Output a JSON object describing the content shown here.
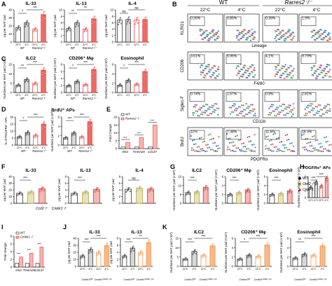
{
  "colors": {
    "wt": "#1a1a1a",
    "ko": "#e0332e",
    "ko_fill": "#f06a63",
    "ko_light": "#f7b7b3",
    "ccrl2": "#a89a3a",
    "cmklr1": "#c01818",
    "orange": "#ef8a3a",
    "orange_fill": "#f7b98a",
    "grey_fill": "#d9d9d9",
    "flow_blue": "#1f4fd6"
  },
  "panels": {
    "A": {
      "letter": "A",
      "charts": [
        {
          "key": "il33",
          "title": "IL-33",
          "ylabel": "pg per WAT pad",
          "ticks": [
            "0",
            "10",
            "20",
            "30",
            "40"
          ],
          "sig": [
            "*",
            "***"
          ],
          "groups": [
            "WT",
            "Rarres2⁻/⁻"
          ],
          "cats": [
            "22°C",
            "4°C",
            "22°C",
            "4°C"
          ],
          "values": [
            18,
            24,
            16,
            34
          ]
        },
        {
          "key": "il13",
          "title": "IL-13",
          "ylabel": "pg per WAT pad",
          "ticks": [
            "0",
            "2",
            "4",
            "6",
            "8",
            "10"
          ],
          "sig": [
            "**",
            "**"
          ],
          "groups": [
            "WT",
            "Rarres2⁻/⁻"
          ],
          "cats": [
            "22°C",
            "4°C",
            "22°C",
            "4°C"
          ],
          "values": [
            4.2,
            6.0,
            4.0,
            7.2
          ]
        },
        {
          "key": "il4",
          "title": "IL-4",
          "ylabel": "pg per WAT pad",
          "ticks": [
            "0",
            "2",
            "4",
            "6",
            "8",
            "10"
          ],
          "sig": [
            "ns",
            "ns"
          ],
          "groups": [
            "WT",
            "Rarres2⁻/⁻"
          ],
          "cats": [
            "22°C",
            "4°C",
            "22°C",
            "4°C"
          ],
          "values": [
            6.8,
            7.0,
            6.9,
            7.0
          ]
        }
      ]
    },
    "B": {
      "letter": "B",
      "header_wt": "WT",
      "header_ko": "Rarres2⁻/⁻",
      "temps": [
        "22°C",
        "4°C",
        "22°C",
        "4°C"
      ],
      "rows": [
        {
          "ylab": "KLRG1",
          "xlab": "Lineage",
          "pct": [
            "0.26%",
            "0.85%",
            "0.39%",
            "1.9%"
          ]
        },
        {
          "ylab": "CD206",
          "xlab": "F4/80",
          "pct": [
            "3.61%",
            "5.95%",
            "4.1%",
            "9.79%"
          ]
        },
        {
          "ylab": "Siglec-F",
          "xlab": "CD11b",
          "pct": [
            "0.74%",
            "1.57%",
            "0.9%",
            "2.81%"
          ]
        },
        {
          "ylab": "BrdU",
          "xlab": "PDGFRα",
          "pct": [
            "11%",
            "7.38%",
            "11.6%",
            "16.3%"
          ]
        }
      ]
    },
    "C": {
      "letter": "C",
      "charts": [
        {
          "key": "ilc2",
          "title": "ILC2",
          "ylabel": "Numbers per WAT pad (×10³)",
          "ticks": [
            "0",
            "5",
            "10",
            "15"
          ],
          "sig": [
            "**",
            "***"
          ],
          "values": [
            4,
            7,
            5,
            12
          ]
        },
        {
          "key": "cd206",
          "title": "CD206⁺ Mφ",
          "ylabel": "Numbers per WAT pad (×10⁴)",
          "ticks": [
            "0",
            "2",
            "4",
            "6",
            "8"
          ],
          "sig": [
            "*",
            "***"
          ],
          "values": [
            2,
            3.2,
            2.3,
            6.6
          ]
        },
        {
          "key": "eos",
          "title": "Eosinophil",
          "ylabel": "Numbers per WAT pad (×10³)",
          "ticks": [
            "0",
            "2",
            "4",
            "6"
          ],
          "sig": [
            "*",
            "***"
          ],
          "values": [
            1.6,
            2.6,
            1.8,
            4.5
          ]
        }
      ]
    },
    "D": {
      "letter": "D",
      "title": "BrdU⁺ APs",
      "charts": [
        {
          "key": "pct",
          "ylabel": "% of PDGFRα⁺ APs",
          "ticks": [
            "0",
            "5",
            "10",
            "15",
            "20"
          ],
          "sig": [
            "*",
            "***"
          ],
          "values": [
            6,
            9,
            7,
            15
          ]
        },
        {
          "key": "num",
          "ylabel": "Numbers per WAT pad (×10³)",
          "ticks": [
            "0",
            "2",
            "4",
            "6"
          ],
          "sig": [
            "***",
            "***"
          ],
          "values": [
            1.6,
            2.6,
            1.8,
            5.0
          ]
        }
      ]
    },
    "E": {
      "letter": "E",
      "ylabel": "Fold change",
      "legend": [
        "WT",
        "Rarres2⁻/⁻"
      ],
      "genes": [
        "Il4rα",
        "Tmem26",
        "Cd137"
      ],
      "ticks": [
        "0",
        "5",
        "10",
        "15",
        "20"
      ],
      "sig": [
        "***",
        "***",
        "***"
      ],
      "wt": [
        1,
        1,
        1
      ],
      "ko": [
        4,
        7,
        15
      ]
    },
    "F": {
      "letter": "F",
      "charts": [
        {
          "key": "f_il33",
          "title": "IL-33",
          "ylabel": "pg per WAT pad",
          "ticks": [
            "0",
            "10",
            "20",
            "30",
            "40"
          ],
          "sig": "***",
          "values": [
            15,
            17,
            22,
            30
          ]
        },
        {
          "key": "f_il13",
          "title": "IL-13",
          "ylabel": "pg per WAT pad",
          "ticks": [
            "0",
            "2",
            "4",
            "6",
            "8"
          ],
          "sig": "***",
          "values": [
            3.0,
            3.4,
            4.2,
            6.0
          ]
        },
        {
          "key": "f_il4",
          "title": "IL-4",
          "ylabel": "pg per WAT pad",
          "ticks": [
            "0",
            "2",
            "4",
            "6",
            "8"
          ],
          "sig": "ns",
          "values": [
            4.2,
            4.6,
            4.3,
            4.5
          ]
        }
      ],
      "xgroups": [
        "WT",
        "Ccrl2⁻/⁻",
        "Cmklr1⁻/⁻"
      ]
    },
    "G": {
      "letter": "G",
      "charts": [
        {
          "key": "g_ilc2",
          "title": "ILC2",
          "ylabel": "Numbers per WAT pad (×10³)",
          "ticks": [
            "0",
            "5",
            "10",
            "15"
          ],
          "sig": "***",
          "values": [
            6,
            6.5,
            9,
            12
          ]
        },
        {
          "key": "g_cd206",
          "title": "CD206⁺ Mφ",
          "ylabel": "Numbers per WAT pad (×10⁴)",
          "ticks": [
            "0",
            "2",
            "4",
            "6"
          ],
          "sig": "***",
          "values": [
            2,
            2.4,
            3,
            5.6
          ]
        },
        {
          "key": "g_eos",
          "title": "Eosinophil",
          "ylabel": "Numbers per WAT pad (×10³)",
          "ticks": [
            "0",
            "2",
            "4",
            "6"
          ],
          "sig": "***",
          "values": [
            2,
            2.2,
            2.8,
            4.2
          ]
        }
      ],
      "legend": [
        "WT",
        "Ccrl2⁻/⁻",
        "Cmklr1⁻/⁻"
      ]
    },
    "H": {
      "letter": "H",
      "title": "PDGFRα⁺ APs",
      "ylabel": "Numbers per WAT pad (×10³)",
      "ticks": [
        "0",
        "2",
        "4",
        "6"
      ],
      "sig": [
        "***",
        "***",
        "***"
      ],
      "cats": [
        "22°C",
        "4°C",
        "22°C",
        "4°C"
      ],
      "values": [
        3,
        4.5,
        3.4,
        5.6
      ]
    },
    "I": {
      "letter": "I",
      "ylabel": "Fold change",
      "legend": [
        "WT",
        "Cmklr1⁻/⁻"
      ],
      "genes": [
        "Il4rα",
        "Tmem26",
        "Cd137"
      ],
      "ticks": [
        "0",
        "2",
        "4",
        "6",
        "8"
      ],
      "sig": [
        "***",
        "***",
        "***"
      ],
      "wt": [
        1,
        1,
        1
      ],
      "ko": [
        2.6,
        3.6,
        5.2
      ]
    },
    "J": {
      "letter": "J",
      "charts": [
        {
          "key": "j_il33",
          "title": "IL-33",
          "ylabel": "pg per WAT pad",
          "ticks": [
            "0",
            "10",
            "20",
            "30",
            "40"
          ],
          "sig": [
            "***",
            "***"
          ],
          "values": [
            15,
            24,
            20,
            30
          ]
        },
        {
          "key": "j_il13",
          "title": "IL-13",
          "ylabel": "pg per WAT pad",
          "ticks": [
            "0",
            "2",
            "4",
            "6",
            "8"
          ],
          "sig": [
            "***",
            "**"
          ],
          "values": [
            3,
            5.2,
            4.0,
            6.8
          ]
        }
      ],
      "groups": [
        "Cmklr1ᶠˡ/ᶠˡ",
        "Cmklr1ᴬᵈᵈᵖᵒ‑ᶜʳᵉ"
      ],
      "cats": [
        "22°C",
        "4°C",
        "22°C",
        "4°C"
      ]
    },
    "K": {
      "letter": "K",
      "charts": [
        {
          "key": "k_ilc2",
          "title": "ILC2",
          "ylabel": "Numbers per WAT pad (×10³)",
          "ticks": [
            "0",
            "5",
            "10",
            "15"
          ],
          "sig": [
            "***",
            "***"
          ],
          "values": [
            4,
            8,
            6,
            11
          ]
        },
        {
          "key": "k_cd206",
          "title": "CD206⁺ Mφ",
          "ylabel": "Numbers per WAT pad (×10⁴)",
          "ticks": [
            "0",
            "2",
            "4",
            "6"
          ],
          "sig": [
            "*",
            "***"
          ],
          "values": [
            1.6,
            2.4,
            2.2,
            4.6
          ]
        },
        {
          "key": "k_eos",
          "title": "Eosinophil",
          "ylabel": "Numbers per WAT pad (×10³)",
          "ticks": [
            "0",
            "2",
            "4",
            "6"
          ],
          "sig": [
            "**",
            "***"
          ],
          "values": [
            1.8,
            2.6,
            2.4,
            4.4
          ]
        }
      ],
      "groups": [
        "Cmklr1ᶠˡ/ᶠˡ",
        "Cmklr1ᴬᵈᵈᵖᵒ‑ᶜʳᵉ"
      ],
      "cats": [
        "22°C",
        "4°C",
        "22°C",
        "4°C"
      ]
    }
  }
}
